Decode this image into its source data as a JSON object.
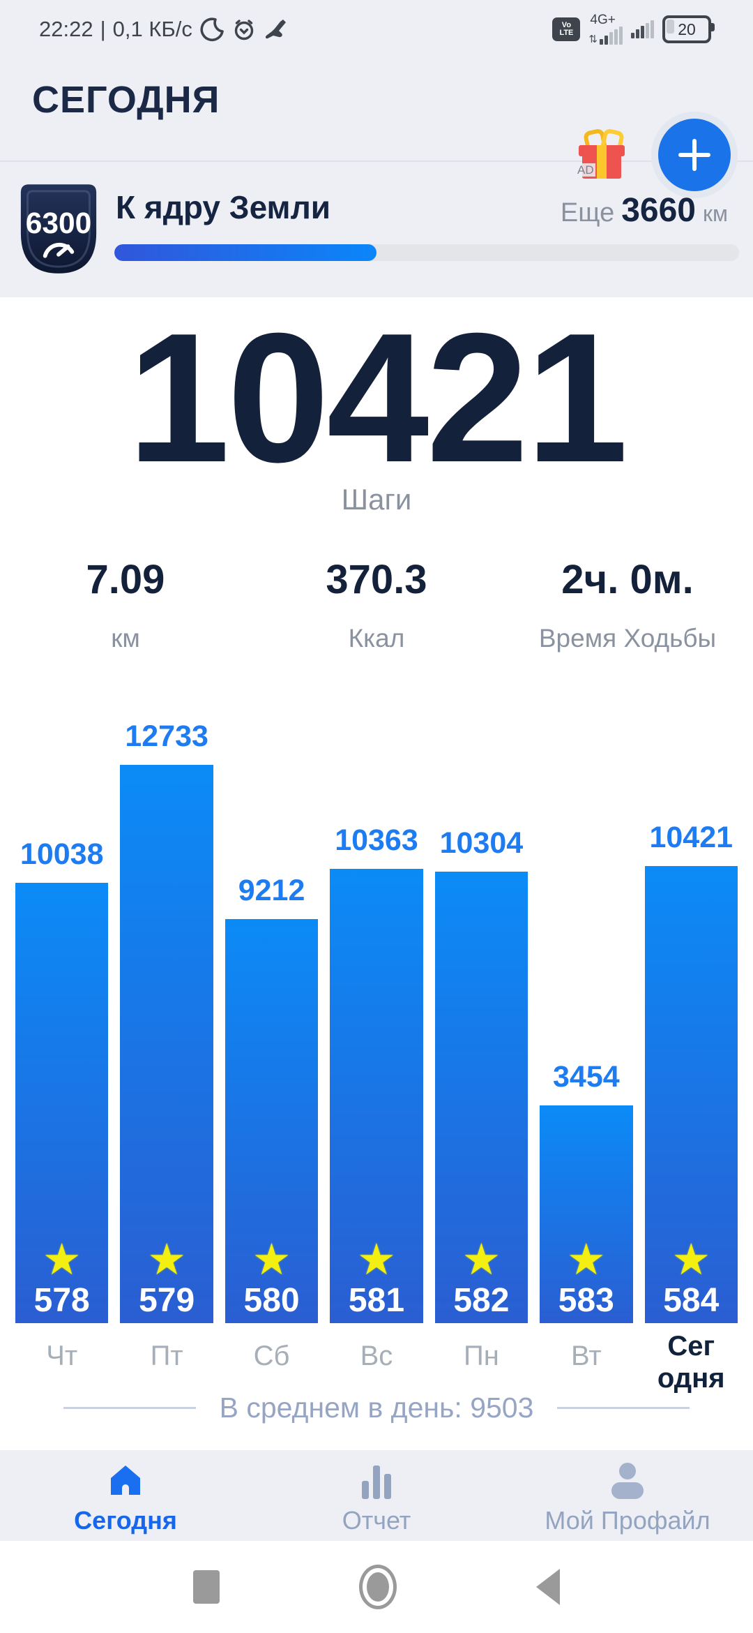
{
  "status_bar": {
    "time": "22:22",
    "separator": "|",
    "network_speed": "0,1 КБ/с",
    "volte_line1": "Vo",
    "volte_line2": "LTE",
    "network_type": "4G+",
    "battery_percent": "20"
  },
  "header": {
    "title": "СЕГОДНЯ",
    "ad_label": "AD"
  },
  "goal_card": {
    "badge_value": "6300",
    "title": "К ядру Земли",
    "remaining_prefix": "Еще",
    "remaining_value": "3660",
    "remaining_unit": "км",
    "progress_percent": 42
  },
  "today": {
    "steps": "10421",
    "steps_label": "Шаги"
  },
  "stats": [
    {
      "value": "7.09",
      "label": "км"
    },
    {
      "value": "370.3",
      "label": "Ккал"
    },
    {
      "value": "2ч. 0м.",
      "label": "Время Ходьбы"
    }
  ],
  "chart_data": {
    "type": "bar",
    "categories": [
      "Чт",
      "Пт",
      "Сб",
      "Вс",
      "Пн",
      "Вт",
      "Сегодня"
    ],
    "values": [
      10038,
      12733,
      9212,
      10363,
      10304,
      3454,
      10421
    ],
    "star_labels": [
      "578",
      "579",
      "580",
      "581",
      "582",
      "583",
      "584"
    ],
    "today_index": 6,
    "title": "",
    "xlabel": "",
    "ylabel": "",
    "ylim": [
      0,
      12733
    ],
    "bar_color_top": "#0b8bf7",
    "bar_color_bottom": "#2a5ed2",
    "value_label_color": "#1e7cf2",
    "average_per_day": 9503
  },
  "average": {
    "label": "В среднем в день:",
    "value": "9503"
  },
  "bottom_nav": {
    "items": [
      {
        "label": "Сегодня",
        "icon": "home-icon",
        "active": true
      },
      {
        "label": "Отчет",
        "icon": "report-icon",
        "active": false
      },
      {
        "label": "Мой Профайл",
        "icon": "profile-icon",
        "active": false
      }
    ]
  },
  "colors": {
    "accent_blue": "#1a73e8",
    "navy_text": "#14213a",
    "gray_label": "#8b929f",
    "top_background": "#edeff4",
    "star_yellow": "#f3f011"
  }
}
